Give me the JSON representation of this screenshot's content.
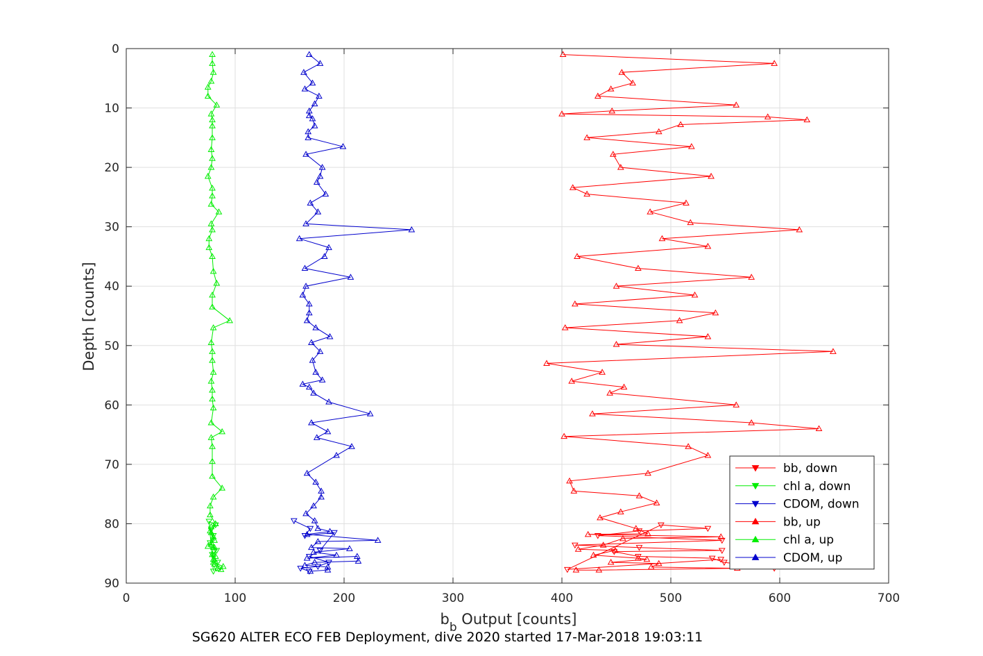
{
  "chart_data": {
    "type": "line",
    "title": "",
    "xlabel_base": "b",
    "xlabel_sub": "b",
    "xlabel_rest": " Output [counts]",
    "ylabel": "Depth [counts]",
    "caption": "SG620 ALTER ECO FEB Deployment, dive 2020 started 17-Mar-2018 19:03:11",
    "xlim": [
      0,
      700
    ],
    "ylim": [
      0,
      90
    ],
    "y_reversed": true,
    "grid": true,
    "legend_position": "lower-right",
    "x_ticks": [
      "0",
      "100",
      "200",
      "300",
      "400",
      "500",
      "600",
      "700"
    ],
    "y_ticks": [
      "0",
      "10",
      "20",
      "30",
      "40",
      "50",
      "60",
      "70",
      "80",
      "90"
    ],
    "series": [
      {
        "name": "bb, down",
        "color": "#ff0000",
        "marker": "triangle-down",
        "points": [
          [
            595,
            87.5
          ],
          [
            549,
            86.5
          ],
          [
            538,
            85.8
          ],
          [
            470,
            85.5
          ],
          [
            448,
            84.7
          ],
          [
            547,
            84.5
          ],
          [
            471,
            84
          ],
          [
            412,
            83.6
          ],
          [
            547,
            82.8
          ],
          [
            433,
            82
          ],
          [
            471,
            81.2
          ],
          [
            534,
            80.8
          ],
          [
            491,
            80.2
          ],
          [
            405,
            87.7
          ],
          [
            546,
            86
          ]
        ]
      },
      {
        "name": "chl a, down",
        "color": "#00ee00",
        "marker": "triangle-down",
        "points": [
          [
            83,
            87.5
          ],
          [
            84,
            86.5
          ],
          [
            79,
            85.2
          ],
          [
            83,
            84.5
          ],
          [
            77,
            83.2
          ],
          [
            80,
            82
          ],
          [
            78,
            80.9
          ],
          [
            82,
            80.2
          ],
          [
            76,
            79.6
          ],
          [
            80,
            88
          ]
        ]
      },
      {
        "name": "CDOM, down",
        "color": "#0000cc",
        "marker": "triangle-down",
        "points": [
          [
            154,
            79.5
          ],
          [
            169,
            80.8
          ],
          [
            164,
            82
          ],
          [
            191,
            81.5
          ],
          [
            178,
            84.5
          ],
          [
            168,
            85.5
          ],
          [
            186,
            86.5
          ],
          [
            176,
            87.2
          ],
          [
            160,
            87.5
          ],
          [
            168,
            88
          ]
        ]
      },
      {
        "name": "bb, up",
        "color": "#ff0000",
        "marker": "triangle-up",
        "points": [
          [
            401,
            1
          ],
          [
            595,
            2.5
          ],
          [
            455,
            4
          ],
          [
            465,
            5.8
          ],
          [
            445,
            6.8
          ],
          [
            433,
            8
          ],
          [
            560,
            9.5
          ],
          [
            446,
            10.5
          ],
          [
            400,
            11
          ],
          [
            589,
            11.5
          ],
          [
            625,
            12
          ],
          [
            509,
            12.8
          ],
          [
            489,
            14
          ],
          [
            423,
            15
          ],
          [
            519,
            16.5
          ],
          [
            447,
            17.8
          ],
          [
            454,
            20
          ],
          [
            537,
            21.5
          ],
          [
            410,
            23.4
          ],
          [
            423,
            24.5
          ],
          [
            514,
            26
          ],
          [
            481,
            27.5
          ],
          [
            518,
            29.3
          ],
          [
            618,
            30.5
          ],
          [
            492,
            32
          ],
          [
            534,
            33.3
          ],
          [
            414,
            35
          ],
          [
            470,
            37
          ],
          [
            574,
            38.5
          ],
          [
            450,
            40
          ],
          [
            522,
            41.5
          ],
          [
            412,
            43
          ],
          [
            541,
            44.5
          ],
          [
            508,
            45.8
          ],
          [
            403,
            47
          ],
          [
            534,
            48.5
          ],
          [
            450,
            49.8
          ],
          [
            649,
            51
          ],
          [
            386,
            53
          ],
          [
            437,
            54.5
          ],
          [
            409,
            56
          ],
          [
            457,
            57
          ],
          [
            444,
            58
          ],
          [
            560,
            60
          ],
          [
            428,
            61.5
          ],
          [
            574,
            63
          ],
          [
            636,
            64
          ],
          [
            402,
            65.3
          ],
          [
            516,
            67
          ],
          [
            534,
            68.5
          ],
          [
            479,
            71.5
          ],
          [
            407,
            72.8
          ],
          [
            411,
            74.5
          ],
          [
            471,
            75.3
          ],
          [
            487,
            76.5
          ],
          [
            454,
            78
          ],
          [
            435,
            79
          ],
          [
            468,
            80.8
          ],
          [
            479,
            81.7
          ],
          [
            424,
            81.8
          ],
          [
            546,
            82.2
          ],
          [
            456,
            82.5
          ],
          [
            438,
            83.6
          ],
          [
            415,
            84.3
          ],
          [
            449,
            84.5
          ],
          [
            429,
            85.3
          ],
          [
            470,
            85.8
          ],
          [
            478,
            86
          ],
          [
            445,
            86.5
          ],
          [
            489,
            86.7
          ],
          [
            482,
            87.3
          ],
          [
            561,
            87.5
          ],
          [
            434,
            87.8
          ],
          [
            413,
            87.8
          ]
        ]
      },
      {
        "name": "chl a, up",
        "color": "#00ee00",
        "marker": "triangle-up",
        "points": [
          [
            79,
            1
          ],
          [
            79,
            2.5
          ],
          [
            80,
            4
          ],
          [
            78,
            5.5
          ],
          [
            75,
            6.5
          ],
          [
            75,
            8
          ],
          [
            83,
            9.5
          ],
          [
            78,
            11
          ],
          [
            79,
            12
          ],
          [
            79,
            13
          ],
          [
            79,
            15
          ],
          [
            78,
            17
          ],
          [
            79,
            18.5
          ],
          [
            78,
            20
          ],
          [
            75,
            21.5
          ],
          [
            79,
            23.5
          ],
          [
            79,
            24.8
          ],
          [
            78,
            26.2
          ],
          [
            85,
            27.5
          ],
          [
            78,
            29.5
          ],
          [
            79,
            30.5
          ],
          [
            76,
            32
          ],
          [
            76,
            33.5
          ],
          [
            79,
            35
          ],
          [
            80,
            37.5
          ],
          [
            83,
            39.5
          ],
          [
            79,
            41.5
          ],
          [
            79,
            43.5
          ],
          [
            95,
            45.8
          ],
          [
            80,
            47
          ],
          [
            78,
            49.5
          ],
          [
            79,
            51
          ],
          [
            79,
            52.5
          ],
          [
            80,
            54.5
          ],
          [
            78,
            56
          ],
          [
            79,
            57.5
          ],
          [
            79,
            59
          ],
          [
            80,
            60.5
          ],
          [
            78,
            63
          ],
          [
            88,
            64.5
          ],
          [
            78,
            65.5
          ],
          [
            79,
            67
          ],
          [
            79,
            69.5
          ],
          [
            79,
            72
          ],
          [
            88,
            74
          ],
          [
            80,
            75.5
          ],
          [
            77,
            77
          ],
          [
            77,
            78.5
          ],
          [
            82,
            80
          ],
          [
            78,
            81.5
          ],
          [
            81,
            82.8
          ],
          [
            75,
            83.8
          ],
          [
            81,
            84
          ],
          [
            82,
            85.5
          ],
          [
            80,
            86.5
          ],
          [
            89,
            87.2
          ],
          [
            87,
            87.7
          ],
          [
            84,
            87.5
          ],
          [
            81,
            86.8
          ],
          [
            80,
            86
          ],
          [
            79,
            85.2
          ],
          [
            80,
            84
          ],
          [
            78,
            83.2
          ],
          [
            80,
            82.2
          ],
          [
            77,
            81.2
          ],
          [
            78,
            80.5
          ]
        ]
      },
      {
        "name": "CDOM, up",
        "color": "#0000cc",
        "marker": "triangle-up",
        "points": [
          [
            168,
            1
          ],
          [
            178,
            2.5
          ],
          [
            163,
            4
          ],
          [
            171,
            5.8
          ],
          [
            164,
            6.8
          ],
          [
            177,
            8
          ],
          [
            173,
            9.3
          ],
          [
            168,
            10.5
          ],
          [
            168,
            11.3
          ],
          [
            171,
            11.8
          ],
          [
            173,
            13
          ],
          [
            167,
            14
          ],
          [
            167,
            15
          ],
          [
            199,
            16.5
          ],
          [
            165,
            17.8
          ],
          [
            180,
            20
          ],
          [
            178,
            21.5
          ],
          [
            175,
            22.5
          ],
          [
            183,
            24.5
          ],
          [
            169,
            26
          ],
          [
            176,
            27.5
          ],
          [
            165,
            29.5
          ],
          [
            262,
            30.5
          ],
          [
            159,
            32
          ],
          [
            186,
            33.5
          ],
          [
            182,
            35
          ],
          [
            164,
            37
          ],
          [
            206,
            38.5
          ],
          [
            165,
            40
          ],
          [
            162,
            41.5
          ],
          [
            168,
            43
          ],
          [
            168,
            44.5
          ],
          [
            166,
            45.8
          ],
          [
            174,
            47
          ],
          [
            187,
            48.5
          ],
          [
            170,
            49.5
          ],
          [
            178,
            51
          ],
          [
            171,
            52.5
          ],
          [
            174,
            54.5
          ],
          [
            180,
            55.8
          ],
          [
            162,
            56.5
          ],
          [
            168,
            57
          ],
          [
            172,
            58
          ],
          [
            186,
            59.5
          ],
          [
            224,
            61.5
          ],
          [
            170,
            63
          ],
          [
            185,
            64.5
          ],
          [
            175,
            65.5
          ],
          [
            207,
            67
          ],
          [
            193,
            68.5
          ],
          [
            166,
            71.5
          ],
          [
            174,
            73
          ],
          [
            179,
            74.5
          ],
          [
            179,
            75.5
          ],
          [
            172,
            77
          ],
          [
            165,
            78.3
          ],
          [
            173,
            79.5
          ],
          [
            176,
            80.8
          ],
          [
            187,
            81.3
          ],
          [
            166,
            81.8
          ],
          [
            231,
            82.8
          ],
          [
            176,
            83
          ],
          [
            170,
            84
          ],
          [
            205,
            84.2
          ],
          [
            172,
            84.8
          ],
          [
            193,
            85.3
          ],
          [
            166,
            85.8
          ],
          [
            212,
            85.5
          ],
          [
            213,
            86.3
          ],
          [
            173,
            86.5
          ],
          [
            164,
            87
          ],
          [
            185,
            87.3
          ],
          [
            185,
            87.8
          ],
          [
            169,
            88
          ]
        ]
      }
    ]
  }
}
